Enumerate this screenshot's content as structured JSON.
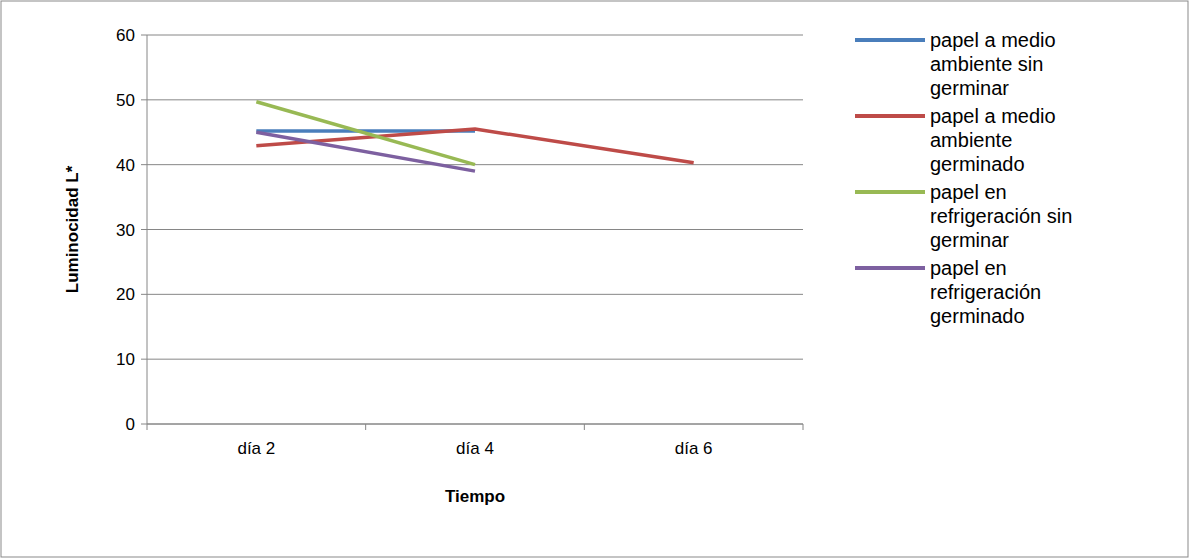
{
  "chart_data": {
    "type": "line",
    "x_label": "Tiempo",
    "y_label": "Luminocidad L*",
    "categories": [
      "día 2",
      "día 4",
      "día 6"
    ],
    "series": [
      {
        "name": "papel a medio ambiente sin germinar",
        "color": "#4a7ebb",
        "values": [
          45.2,
          45.2,
          null
        ]
      },
      {
        "name": "papel a medio ambiente germinado",
        "color": "#be4b48",
        "values": [
          42.9,
          45.5,
          40.3
        ]
      },
      {
        "name": "papel en refrigeración sin germinar",
        "color": "#98b954",
        "values": [
          49.7,
          40.0,
          null
        ]
      },
      {
        "name": "papel en refrigeración germinado",
        "color": "#7d60a0",
        "values": [
          45.0,
          39.0,
          null
        ]
      }
    ],
    "ylim": [
      0,
      60
    ],
    "yticks": [
      0,
      10,
      20,
      30,
      40,
      50,
      60
    ],
    "grid": true,
    "legend": "right"
  }
}
